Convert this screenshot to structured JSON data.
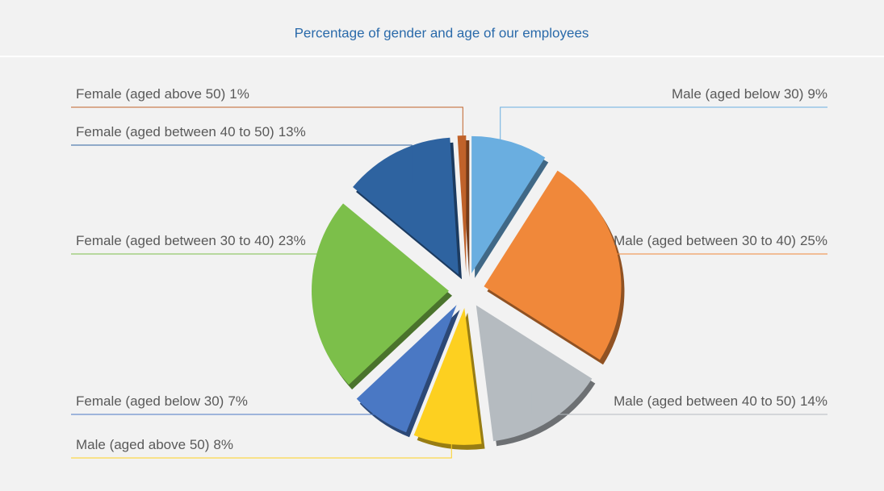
{
  "chart_data": {
    "type": "pie",
    "title": "Percentage of gender and age of our employees",
    "categories": [
      "Male (aged below 30)",
      "Male (aged between 30 to 40)",
      "Male (aged between 40 to 50)",
      "Male (aged above 50)",
      "Female (aged below 30)",
      "Female (aged between 30 to 40)",
      "Female (aged between 40 to 50)",
      "Female (aged above 50)"
    ],
    "values": [
      9,
      25,
      14,
      8,
      7,
      23,
      13,
      1
    ],
    "value_labels": [
      "9%",
      "25%",
      "14%",
      "8%",
      "7%",
      "23%",
      "13%",
      "1%"
    ],
    "colors": [
      "#6aaee0",
      "#f0883a",
      "#b5bbc0",
      "#fdd020",
      "#4a78c4",
      "#7cbf4a",
      "#2e63a0",
      "#c0622a"
    ]
  }
}
